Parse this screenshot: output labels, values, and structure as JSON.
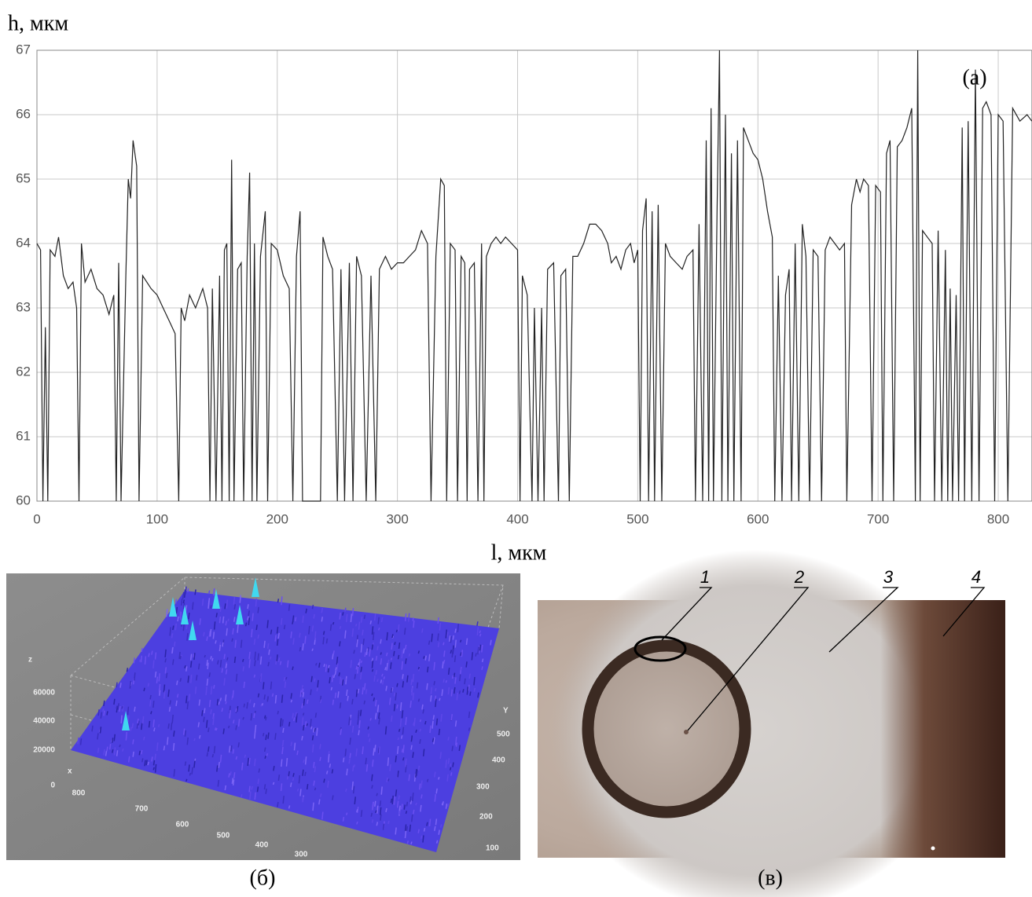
{
  "chart_data": [
    {
      "type": "line",
      "ylabel": "h, мкм",
      "xlabel": "l, мкм",
      "annotation": "(a)",
      "color": "#222",
      "grid": true,
      "xlim": [
        0,
        828
      ],
      "ylim": [
        60,
        67
      ],
      "xticks": [
        0,
        100,
        200,
        300,
        400,
        500,
        600,
        700,
        800
      ],
      "yticks": [
        60,
        61,
        62,
        63,
        64,
        65,
        66,
        67
      ],
      "x": [
        0,
        3,
        5,
        7,
        9,
        11,
        15,
        18,
        22,
        26,
        30,
        33,
        35,
        37,
        40,
        45,
        50,
        55,
        60,
        64,
        66,
        68,
        70,
        74,
        76,
        78,
        80,
        83,
        85,
        88,
        95,
        100,
        105,
        110,
        115,
        118,
        120,
        123,
        127,
        132,
        138,
        142,
        144,
        146,
        149,
        152,
        154,
        156,
        158,
        160,
        162,
        164,
        167,
        170,
        172,
        175,
        177,
        179,
        181,
        183,
        186,
        190,
        192,
        195,
        200,
        205,
        210,
        213,
        216,
        219,
        221,
        236,
        238,
        242,
        246,
        250,
        253,
        256,
        260,
        263,
        266,
        270,
        274,
        278,
        282,
        285,
        290,
        295,
        300,
        305,
        310,
        315,
        320,
        325,
        328,
        332,
        336,
        339,
        341,
        344,
        348,
        350,
        353,
        356,
        358,
        360,
        364,
        367,
        370,
        372,
        374,
        378,
        382,
        386,
        390,
        395,
        400,
        402,
        404,
        408,
        412,
        414,
        417,
        420,
        422,
        425,
        430,
        434,
        436,
        440,
        443,
        446,
        450,
        455,
        460,
        465,
        470,
        475,
        478,
        482,
        486,
        490,
        494,
        497,
        500,
        502,
        504,
        507,
        509,
        512,
        514,
        517,
        520,
        523,
        527,
        532,
        537,
        541,
        546,
        548,
        551,
        554,
        557,
        559,
        561,
        563,
        566,
        568,
        570,
        573,
        575,
        578,
        580,
        583,
        586,
        588,
        592,
        596,
        600,
        604,
        608,
        612,
        614,
        617,
        620,
        623,
        626,
        628,
        631,
        634,
        637,
        640,
        643,
        646,
        650,
        653,
        656,
        660,
        664,
        668,
        672,
        674,
        678,
        682,
        685,
        688,
        692,
        695,
        698,
        702,
        704,
        707,
        710,
        713,
        716,
        720,
        724,
        728,
        731,
        733,
        735,
        737,
        741,
        745,
        747,
        750,
        753,
        756,
        758,
        760,
        762,
        765,
        767,
        770,
        772,
        775,
        778,
        781,
        784,
        787,
        790,
        794,
        797,
        800,
        804,
        808,
        812,
        818,
        824,
        828
      ],
      "values": [
        64.0,
        63.9,
        60,
        62.7,
        60,
        63.9,
        63.8,
        64.1,
        63.5,
        63.3,
        63.4,
        63.0,
        60,
        64.0,
        63.4,
        63.6,
        63.3,
        63.2,
        62.9,
        63.2,
        60,
        63.7,
        60,
        63.5,
        65.0,
        64.7,
        65.6,
        65.2,
        60,
        63.5,
        63.3,
        63.2,
        63.0,
        62.8,
        62.6,
        60,
        63.0,
        62.8,
        63.2,
        63.0,
        63.3,
        63.0,
        60,
        63.3,
        60,
        63.5,
        60,
        63.9,
        64.0,
        60,
        65.3,
        60,
        63.6,
        63.7,
        60,
        63.8,
        65.1,
        60,
        64.0,
        60,
        63.8,
        64.5,
        60,
        64.0,
        63.9,
        63.5,
        63.3,
        60,
        63.8,
        64.5,
        60,
        60,
        64.1,
        63.8,
        63.6,
        60,
        63.6,
        60,
        63.7,
        60,
        63.8,
        63.5,
        60,
        63.5,
        60,
        63.6,
        63.8,
        63.6,
        63.7,
        63.7,
        63.8,
        63.9,
        64.2,
        64.0,
        60,
        63.8,
        65.0,
        64.9,
        60,
        64.0,
        63.9,
        60,
        63.8,
        63.7,
        60,
        63.6,
        63.7,
        60,
        64.0,
        60,
        63.8,
        64.0,
        64.1,
        64.0,
        64.1,
        64.0,
        63.9,
        60,
        63.5,
        63.2,
        60,
        63.0,
        60,
        63.0,
        60,
        63.6,
        63.7,
        60,
        63.5,
        63.6,
        60,
        63.8,
        63.8,
        64.0,
        64.3,
        64.3,
        64.2,
        64.0,
        63.7,
        63.8,
        63.6,
        63.9,
        64.0,
        63.7,
        63.9,
        60,
        64.2,
        64.7,
        60,
        64.5,
        60,
        64.6,
        60,
        64.0,
        63.8,
        63.7,
        63.6,
        63.8,
        63.9,
        60,
        64.3,
        60,
        65.6,
        60,
        66.1,
        60,
        64.5,
        67,
        60,
        66.0,
        60,
        65.4,
        60,
        65.6,
        60,
        65.8,
        65.6,
        65.4,
        65.3,
        65.0,
        64.5,
        64.1,
        60,
        63.5,
        60,
        63.2,
        63.6,
        60,
        64.0,
        60,
        64.3,
        63.8,
        60,
        63.9,
        63.8,
        60,
        63.9,
        64.1,
        64.0,
        63.9,
        64.0,
        60,
        64.6,
        65.0,
        64.8,
        65.0,
        64.9,
        60,
        64.9,
        64.8,
        60,
        65.4,
        65.6,
        60,
        65.5,
        65.6,
        65.8,
        66.1,
        60,
        67,
        60,
        64.2,
        64.1,
        64.0,
        60,
        64.2,
        60,
        63.9,
        60,
        63.3,
        60,
        63.2,
        60,
        65.8,
        60,
        65.9,
        60,
        66.7,
        60,
        66.1,
        66.2,
        66.0,
        60,
        66.0,
        65.9,
        60,
        66.1,
        65.9,
        66.0,
        65.9
      ]
    },
    {
      "type": "surface3d",
      "panel_label": "(б)",
      "zlabel": "z",
      "xlabel": "x",
      "ylabel": "Y",
      "zticks": [
        0,
        20000,
        40000,
        60000
      ],
      "xticks": [
        800,
        700,
        600,
        500,
        400,
        300
      ],
      "yticks": [
        100,
        200,
        300,
        400,
        500
      ]
    },
    {
      "type": "image",
      "panel_label": "(в)",
      "callouts": [
        "1",
        "2",
        "3",
        "4"
      ]
    }
  ]
}
